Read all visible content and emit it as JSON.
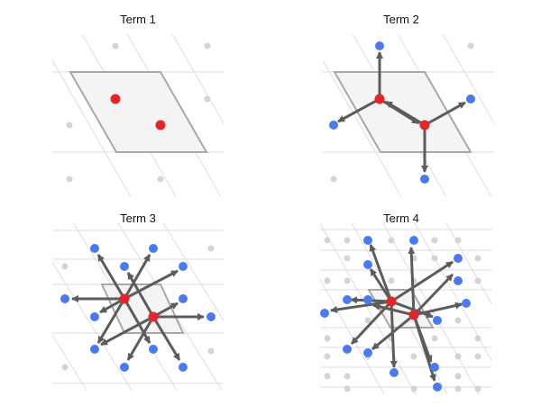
{
  "colors": {
    "background": "#ffffff",
    "lattice_line": "#dddddd",
    "gray_dot": "#d4d4d4",
    "cell_fill": "#f4f4f4",
    "cell_stroke": "#a8a8a8",
    "center_dot": "#e8242b",
    "neighbor_dot": "#4a79f0",
    "arrow": "#5c5c5c"
  },
  "panels": [
    {
      "id": "term-1",
      "title": "Term 1",
      "arrows": false
    },
    {
      "id": "term-2",
      "title": "Term 2",
      "arrows": true
    },
    {
      "id": "term-3",
      "title": "Term 3",
      "arrows": true
    },
    {
      "id": "term-4",
      "title": "Term 4",
      "arrows": true
    }
  ]
}
